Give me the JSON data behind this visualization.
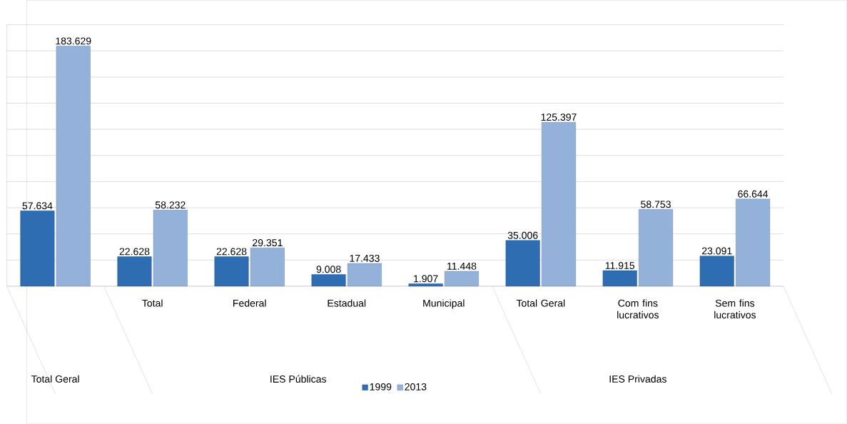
{
  "chart_data": {
    "type": "bar",
    "categories": [
      null,
      "Total",
      "Federal",
      "Estadual",
      "Municipal",
      "Total Geral",
      "Com fins lucrativos",
      "Sem fins lucrativos"
    ],
    "series": [
      {
        "name": "1999",
        "color": "#2f6db3",
        "values": [
          57634,
          22628,
          22628,
          9008,
          1907,
          35006,
          11915,
          23091
        ],
        "value_labels": [
          "57.634",
          "22.628",
          "22.628",
          "9.008",
          "1.907",
          "35.006",
          "11.915",
          "23.091"
        ]
      },
      {
        "name": "2013",
        "color": "#93b1d9",
        "values": [
          183629,
          58232,
          29351,
          17433,
          11448,
          125397,
          58753,
          66644
        ],
        "value_labels": [
          "183.629",
          "58.232",
          "29.351",
          "17.433",
          "11.448",
          "125.397",
          "58.753",
          "66.644"
        ]
      }
    ],
    "ylim": [
      0,
      200000
    ],
    "yticks": [
      {
        "value": 0,
        "label": null
      },
      {
        "value": 20000,
        "label": null
      },
      {
        "value": 40000,
        "label": null
      },
      {
        "value": 60000,
        "label": null
      },
      {
        "value": 80000,
        "label": null
      },
      {
        "value": 100000,
        "label": null
      },
      {
        "value": 120000,
        "label": null
      },
      {
        "value": 140000,
        "label": null
      },
      {
        "value": 160000,
        "label": null
      },
      {
        "value": 180000,
        "label": null
      },
      {
        "value": 200000,
        "label": null
      }
    ],
    "tick_labels": "x",
    "grid": "y",
    "legend": "bottom",
    "annotations": [
      "Total Geral",
      "IES Públicas",
      "IES Privadas"
    ]
  }
}
